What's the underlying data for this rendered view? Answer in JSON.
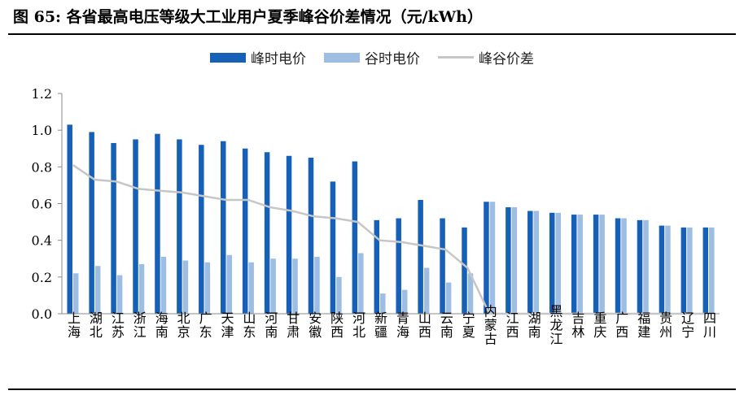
{
  "title": "图 65: 各省最高电压等级大工业用户夏季峰谷价差情况（元/kWh）",
  "colors": {
    "peak": "#1660b7",
    "valley": "#9dbde3",
    "diff": "#c6c6c6",
    "axis": "#888888"
  },
  "chart_data": {
    "type": "bar",
    "categories": [
      "上海",
      "湖北",
      "江苏",
      "浙江",
      "海南",
      "北京",
      "广东",
      "天津",
      "山东",
      "河南",
      "甘肃",
      "安徽",
      "陕西",
      "河北",
      "新疆",
      "青海",
      "山西",
      "云南",
      "宁夏",
      "内蒙古",
      "江西",
      "湖南",
      "黑龙江",
      "吉林",
      "重庆",
      "广西",
      "福建",
      "贵州",
      "辽宁",
      "四川"
    ],
    "series": [
      {
        "name": "峰时电价",
        "type": "bar",
        "values": [
          1.03,
          0.99,
          0.93,
          0.95,
          0.98,
          0.95,
          0.92,
          0.94,
          0.9,
          0.88,
          0.86,
          0.85,
          0.72,
          0.83,
          0.51,
          0.52,
          0.62,
          0.52,
          0.47,
          0.61,
          0.58,
          0.56,
          0.55,
          0.54,
          0.54,
          0.52,
          0.51,
          0.48,
          0.47,
          0.47
        ]
      },
      {
        "name": "谷时电价",
        "type": "bar",
        "values": [
          0.22,
          0.26,
          0.21,
          0.27,
          0.31,
          0.29,
          0.28,
          0.32,
          0.28,
          0.3,
          0.3,
          0.31,
          0.2,
          0.33,
          0.11,
          0.13,
          0.25,
          0.17,
          0.22,
          0.61,
          0.58,
          0.56,
          0.55,
          0.54,
          0.54,
          0.52,
          0.51,
          0.48,
          0.47,
          0.47
        ]
      },
      {
        "name": "峰谷价差",
        "type": "line",
        "values": [
          0.81,
          0.73,
          0.72,
          0.68,
          0.67,
          0.66,
          0.64,
          0.62,
          0.62,
          0.58,
          0.56,
          0.53,
          0.52,
          0.5,
          0.4,
          0.39,
          0.37,
          0.35,
          0.25,
          0.0,
          0.0,
          0.0,
          0.0,
          0.0,
          0.0,
          0.0,
          0.0,
          0.0,
          0.0,
          0.0
        ]
      }
    ],
    "yticks": [
      "0.0",
      "0.2",
      "0.4",
      "0.6",
      "0.8",
      "1.0",
      "1.2"
    ],
    "ylim": [
      0,
      1.2
    ],
    "legend_position": "top",
    "grid": false
  }
}
